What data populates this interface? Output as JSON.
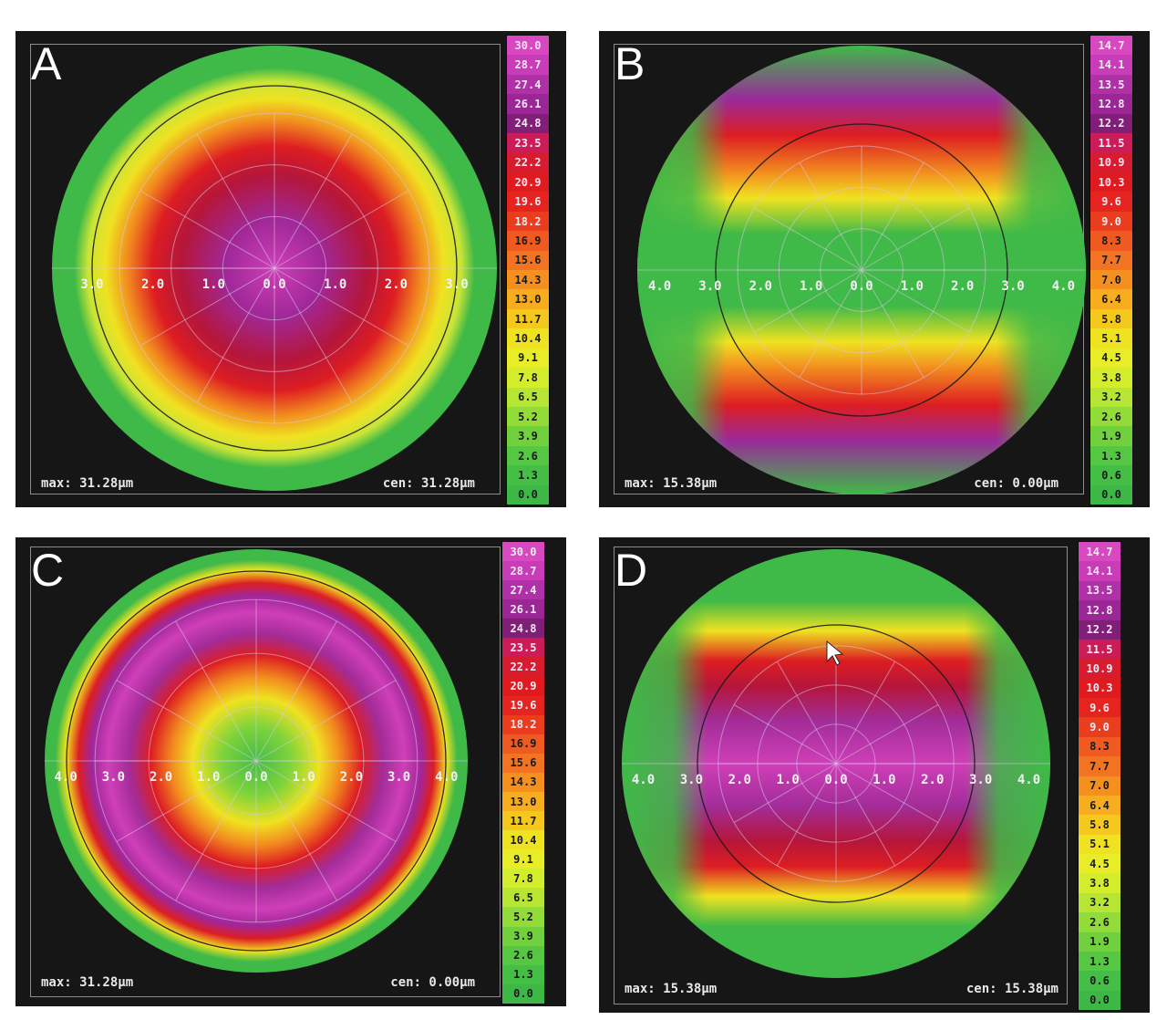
{
  "scale_colors": {
    "30": [
      "#d848c0",
      "#c83cb8",
      "#b030a8",
      "#9b2696",
      "#801e78",
      "#cc1c58",
      "#d81c30",
      "#e01b1f",
      "#e5231f",
      "#ea3d1e",
      "#ee5a20",
      "#f27322",
      "#f5901f",
      "#f7ad1d",
      "#f4c81c",
      "#efe221",
      "#e8ed27",
      "#d3ec2c",
      "#b6e533",
      "#93db39",
      "#71d03d",
      "#55c742",
      "#44be44",
      "#3db847"
    ]
  },
  "panels": [
    {
      "id": "A",
      "letter": "A",
      "max_text": "max: 31.28μm",
      "cen_text": "cen: 31.28μm",
      "pattern": "central-peak",
      "scale": [
        "30.0",
        "28.7",
        "27.4",
        "26.1",
        "24.8",
        "23.5",
        "22.2",
        "20.9",
        "19.6",
        "18.2",
        "16.9",
        "15.6",
        "14.3",
        "13.0",
        "11.7",
        "10.4",
        "9.1",
        "7.8",
        "6.5",
        "5.2",
        "3.9",
        "2.6",
        "1.3",
        "0.0"
      ],
      "axis_labels": [
        "3.0",
        "2.0",
        "1.0",
        "0.0",
        "1.0",
        "2.0",
        "3.0"
      ]
    },
    {
      "id": "B",
      "letter": "B",
      "max_text": "max: 15.38μm",
      "cen_text": "cen: 0.00μm",
      "pattern": "horizontal-bands-edges",
      "scale": [
        "14.7",
        "14.1",
        "13.5",
        "12.8",
        "12.2",
        "11.5",
        "10.9",
        "10.3",
        "9.6",
        "9.0",
        "8.3",
        "7.7",
        "7.0",
        "6.4",
        "5.8",
        "5.1",
        "4.5",
        "3.8",
        "3.2",
        "2.6",
        "1.9",
        "1.3",
        "0.6",
        "0.0"
      ],
      "axis_labels": [
        "4.0",
        "3.0",
        "2.0",
        "1.0",
        "0.0",
        "1.0",
        "2.0",
        "3.0",
        "4.0"
      ]
    },
    {
      "id": "C",
      "letter": "C",
      "max_text": "max: 31.28μm",
      "cen_text": "cen: 0.00μm",
      "pattern": "ring",
      "scale": [
        "30.0",
        "28.7",
        "27.4",
        "26.1",
        "24.8",
        "23.5",
        "22.2",
        "20.9",
        "19.6",
        "18.2",
        "16.9",
        "15.6",
        "14.3",
        "13.0",
        "11.7",
        "10.4",
        "9.1",
        "7.8",
        "6.5",
        "5.2",
        "3.9",
        "2.6",
        "1.3",
        "0.0"
      ],
      "axis_labels": [
        "4.0",
        "3.0",
        "2.0",
        "1.0",
        "0.0",
        "1.0",
        "2.0",
        "3.0",
        "4.0"
      ]
    },
    {
      "id": "D",
      "letter": "D",
      "max_text": "max: 15.38μm",
      "cen_text": "cen: 15.38μm",
      "pattern": "horizontal-band-center",
      "scale": [
        "14.7",
        "14.1",
        "13.5",
        "12.8",
        "12.2",
        "11.5",
        "10.9",
        "10.3",
        "9.6",
        "9.0",
        "8.3",
        "7.7",
        "7.0",
        "6.4",
        "5.8",
        "5.1",
        "4.5",
        "3.8",
        "3.2",
        "2.6",
        "1.9",
        "1.3",
        "0.6",
        "0.0"
      ],
      "axis_labels": [
        "4.0",
        "3.0",
        "2.0",
        "1.0",
        "0.0",
        "1.0",
        "2.0",
        "3.0",
        "4.0"
      ]
    }
  ]
}
